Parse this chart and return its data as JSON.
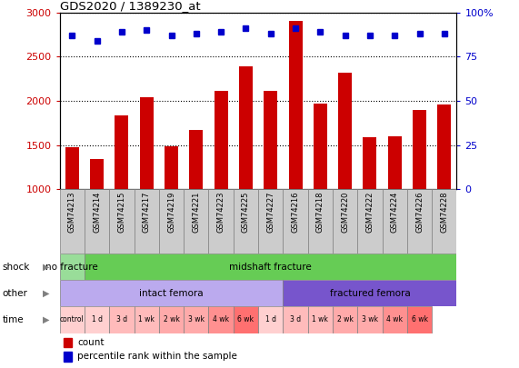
{
  "title": "GDS2020 / 1389230_at",
  "samples": [
    "GSM74213",
    "GSM74214",
    "GSM74215",
    "GSM74217",
    "GSM74219",
    "GSM74221",
    "GSM74223",
    "GSM74225",
    "GSM74227",
    "GSM74216",
    "GSM74218",
    "GSM74220",
    "GSM74222",
    "GSM74224",
    "GSM74226",
    "GSM74228"
  ],
  "counts": [
    1470,
    1340,
    1830,
    2040,
    1490,
    1670,
    2110,
    2390,
    2110,
    2910,
    1970,
    2320,
    1590,
    1600,
    1900,
    1960
  ],
  "percentiles": [
    87,
    84,
    89,
    90,
    87,
    88,
    89,
    91,
    88,
    91,
    89,
    87,
    87,
    87,
    88,
    88
  ],
  "bar_color": "#cc0000",
  "dot_color": "#0000cc",
  "ylim_left": [
    1000,
    3000
  ],
  "ylim_right": [
    0,
    100
  ],
  "yticks_left": [
    1000,
    1500,
    2000,
    2500,
    3000
  ],
  "yticks_right": [
    0,
    25,
    50,
    75,
    100
  ],
  "shock_labels": [
    {
      "text": "no fracture",
      "start": 0,
      "end": 1,
      "color": "#99dd99"
    },
    {
      "text": "midshaft fracture",
      "start": 1,
      "end": 16,
      "color": "#66cc55"
    }
  ],
  "other_labels": [
    {
      "text": "intact femora",
      "start": 0,
      "end": 9,
      "color": "#bbaaee"
    },
    {
      "text": "fractured femora",
      "start": 9,
      "end": 16,
      "color": "#7755cc"
    }
  ],
  "time_colors": [
    "#ffd0d0",
    "#ffd0d0",
    "#ffbbbb",
    "#ffbbbb",
    "#ffaaaa",
    "#ffaaaa",
    "#ff9090",
    "#ff7070",
    "#ffd0d0",
    "#ffbbbb",
    "#ffbbbb",
    "#ffaaaa",
    "#ffaaaa",
    "#ff9090",
    "#ff7070"
  ],
  "time_texts": [
    "control",
    "1 d",
    "3 d",
    "1 wk",
    "2 wk",
    "3 wk",
    "4 wk",
    "6 wk",
    "1 d",
    "3 d",
    "1 wk",
    "2 wk",
    "3 wk",
    "4 wk",
    "6 wk"
  ],
  "chart_bg": "#ffffff",
  "label_bg": "#cccccc",
  "fig_bg": "#ffffff"
}
